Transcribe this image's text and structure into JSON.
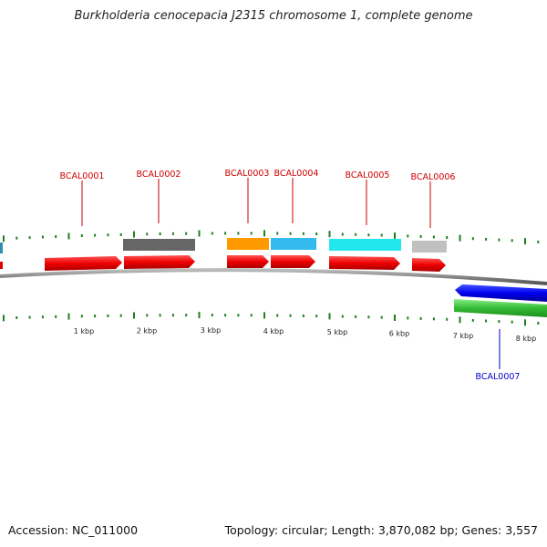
{
  "header": {
    "title": "Burkholderia cenocepacia J2315 chromosome 1, complete genome"
  },
  "footer": {
    "accession": "Accession: NC_011000",
    "summary": "Topology: circular; Length: 3,870,082 bp; Genes: 3,557"
  },
  "colors": {
    "forward_cds": "#e00000",
    "reverse_cds": "#0000dd",
    "reverse_gene": "#33bb33",
    "backbone": "#888888",
    "tick": "#1f7f1f",
    "label_forward": "#cc0000",
    "label_reverse": "#0000cc"
  },
  "gene_labels": [
    {
      "id": "BCAL0001",
      "strand": "forward"
    },
    {
      "id": "BCAL0002",
      "strand": "forward"
    },
    {
      "id": "BCAL0003",
      "strand": "forward"
    },
    {
      "id": "BCAL0004",
      "strand": "forward"
    },
    {
      "id": "BCAL0005",
      "strand": "forward"
    },
    {
      "id": "BCAL0006",
      "strand": "forward"
    },
    {
      "id": "BCAL0007",
      "strand": "reverse"
    }
  ],
  "gene_colors": {
    "BCAL0002": "#666666",
    "BCAL0003": "#ff9900",
    "BCAL0004": "#33bbee",
    "BCAL0005": "#22e8ee",
    "BCAL0006": "#c0c0c0"
  },
  "scale_ticks": [
    "1 kbp",
    "2 kbp",
    "3 kbp",
    "4 kbp",
    "5 kbp",
    "6 kbp",
    "7 kbp",
    "8 kbp"
  ]
}
